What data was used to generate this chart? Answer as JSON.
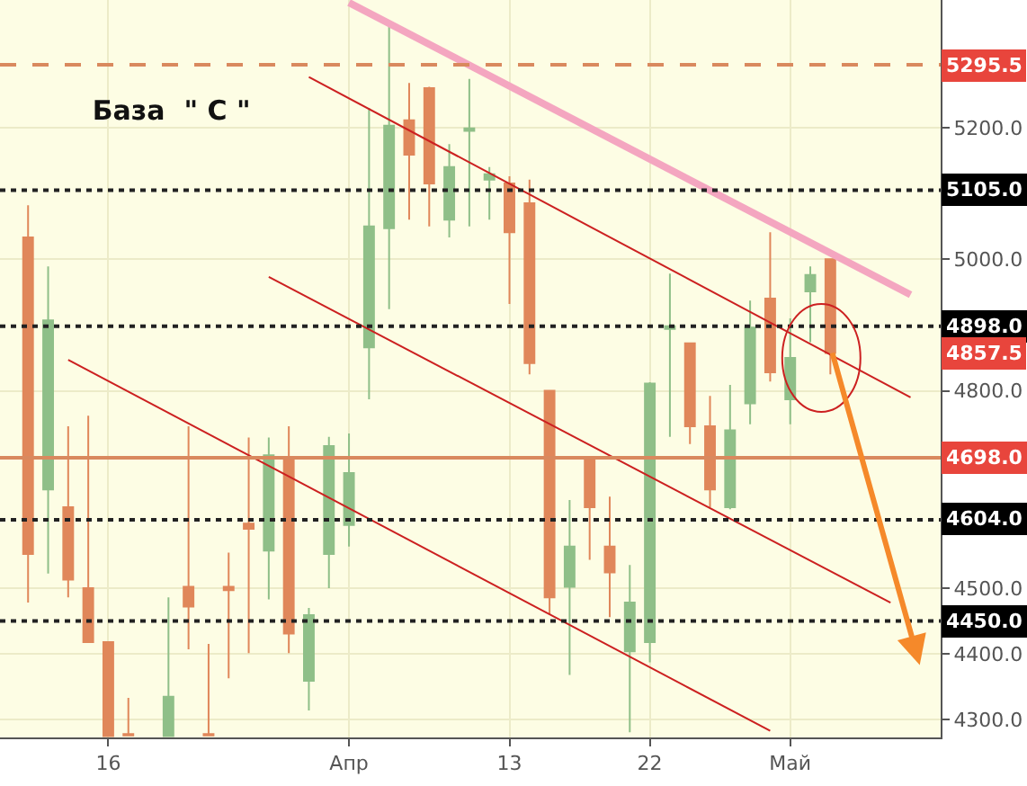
{
  "chart_data": {
    "type": "candlestick",
    "title": "База  \" С \"",
    "categories": [
      null,
      null,
      null,
      null,
      "16",
      null,
      null,
      null,
      null,
      null,
      null,
      null,
      null,
      null,
      null,
      null,
      "Апр",
      null,
      null,
      null,
      null,
      null,
      null,
      null,
      "13",
      null,
      null,
      null,
      null,
      null,
      null,
      "22",
      null,
      null,
      null,
      null,
      null,
      null,
      "Май",
      null,
      null,
      null,
      null,
      null,
      null,
      null
    ],
    "series": [
      {
        "ohlc": [
          [
            5033,
            5082,
            4478,
            4552
          ],
          [
            4650,
            4989,
            4522,
            4907
          ],
          [
            4623,
            4746,
            4486,
            4513
          ],
          [
            4500,
            4762,
            4418,
            4418
          ],
          [
            4418,
            4418,
            4275,
            4275
          ],
          [
            4278,
            4333,
            4275,
            4276
          ],
          null,
          [
            4275,
            4486,
            4275,
            4335
          ],
          [
            4502,
            4746,
            4407,
            4472
          ],
          [
            4278,
            4415,
            4275,
            4276
          ],
          [
            4502,
            4554,
            4363,
            4497
          ],
          [
            4598,
            4729,
            4401,
            4590
          ],
          [
            4557,
            4729,
            4483,
            4702
          ],
          [
            4699,
            4746,
            4401,
            4431
          ],
          [
            4359,
            4470,
            4314,
            4459
          ],
          [
            4552,
            4730,
            4500,
            4716
          ],
          [
            4596,
            4735,
            4563,
            4675
          ],
          [
            4866,
            5230,
            4787,
            5050
          ],
          [
            5047,
            5356,
            4924,
            5203
          ],
          [
            5211,
            5268,
            5060,
            5159
          ],
          [
            5260,
            5262,
            5050,
            5115
          ],
          [
            5060,
            5175,
            5033,
            5140
          ],
          [
            5195,
            5274,
            5050,
            5199
          ],
          [
            5121,
            5140,
            5060,
            5129
          ],
          [
            5115,
            5126,
            4932,
            5041
          ],
          [
            5085,
            5121,
            4825,
            4842
          ],
          [
            4800,
            4800,
            4460,
            4486
          ],
          [
            4502,
            4634,
            4368,
            4563
          ],
          [
            4697,
            4700,
            4543,
            4623
          ],
          [
            4563,
            4639,
            4456,
            4524
          ],
          [
            4404,
            4535,
            4281,
            4478
          ],
          [
            4418,
            4813,
            4387,
            4811
          ],
          [
            4894,
            4978,
            4730,
            4898
          ],
          [
            4872,
            4872,
            4719,
            4746
          ],
          [
            4746,
            4792,
            4623,
            4650
          ],
          [
            4623,
            4809,
            4620,
            4740
          ],
          [
            4781,
            4937,
            4749,
            4896
          ],
          [
            4940,
            5041,
            4814,
            4828
          ],
          [
            4787,
            4910,
            4749,
            4850
          ],
          [
            4951,
            4989,
            4874,
            4976
          ],
          [
            5000,
            5000,
            4825,
            4857.5
          ],
          null,
          null,
          null,
          null,
          null
        ],
        "colors": [
          "#e0875a",
          "#8fbf88",
          "#e0875a",
          "#e0875a",
          "#e0875a",
          "#e0875a",
          null,
          "#8fbf88",
          "#e0875a",
          "#e0875a",
          "#e0875a",
          "#e0875a",
          "#8fbf88",
          "#e0875a",
          "#8fbf88",
          "#8fbf88",
          "#8fbf88",
          "#8fbf88",
          "#8fbf88",
          "#e0875a",
          "#e0875a",
          "#8fbf88",
          "#8fbf88",
          "#8fbf88",
          "#e0875a",
          "#e0875a",
          "#e0875a",
          "#8fbf88",
          "#e0875a",
          "#e0875a",
          "#8fbf88",
          "#8fbf88",
          "#8fbf88",
          "#e0875a",
          "#e0875a",
          "#8fbf88",
          "#8fbf88",
          "#e0875a",
          "#8fbf88",
          "#8fbf88",
          "#e0875a",
          null,
          null,
          null,
          null,
          null
        ]
      },
      {
        "type": "line",
        "color": "#f4a6c0",
        "values": [
          null,
          null,
          null,
          null,
          null,
          null,
          null,
          null,
          null,
          null,
          null,
          null,
          null,
          null,
          null,
          null,
          5390,
          null,
          null,
          null,
          null,
          null,
          null,
          null,
          null,
          null,
          null,
          null,
          null,
          null,
          null,
          null,
          null,
          null,
          null,
          null,
          null,
          null,
          null,
          null,
          null,
          null,
          null,
          null,
          4946,
          null
        ]
      },
      {
        "type": "line",
        "color": "#cc2020",
        "values": [
          null,
          null,
          null,
          null,
          null,
          null,
          null,
          null,
          null,
          null,
          null,
          null,
          null,
          null,
          5277,
          null,
          null,
          null,
          null,
          null,
          null,
          null,
          null,
          null,
          null,
          null,
          null,
          null,
          null,
          null,
          null,
          null,
          null,
          null,
          null,
          null,
          null,
          null,
          null,
          null,
          null,
          null,
          null,
          null,
          4790,
          null
        ]
      },
      {
        "type": "line",
        "color": "#cc2020",
        "values": [
          null,
          null,
          null,
          null,
          null,
          null,
          null,
          null,
          null,
          null,
          null,
          null,
          4973,
          null,
          null,
          null,
          null,
          null,
          null,
          null,
          null,
          null,
          null,
          null,
          null,
          null,
          null,
          null,
          null,
          null,
          null,
          null,
          null,
          null,
          null,
          null,
          null,
          null,
          null,
          null,
          null,
          null,
          null,
          4478,
          null,
          null
        ]
      },
      {
        "type": "line",
        "color": "#cc2020",
        "values": [
          null,
          null,
          4847,
          null,
          null,
          null,
          null,
          null,
          null,
          null,
          null,
          null,
          null,
          null,
          null,
          null,
          null,
          null,
          null,
          null,
          null,
          null,
          null,
          null,
          null,
          null,
          null,
          null,
          null,
          null,
          null,
          null,
          null,
          null,
          null,
          null,
          null,
          4283,
          null,
          null,
          null,
          null,
          null,
          null,
          null,
          null
        ]
      }
    ],
    "ylim": [
      4273,
      5394
    ],
    "yticks": [
      {
        "value": 4300,
        "label": "4300.0"
      },
      {
        "value": 4400,
        "label": "4400.0"
      },
      {
        "value": 4500,
        "label": "4500.0"
      },
      {
        "value": 4800,
        "label": "4800.0"
      },
      {
        "value": 5000,
        "label": "5000.0"
      },
      {
        "value": 5200,
        "label": "5200.0"
      }
    ],
    "grid": true,
    "ref_lines": [
      {
        "axis": "y",
        "value": 5295.5,
        "label": "5295.5",
        "color": "#d9895e",
        "line_style": "dashed"
      },
      {
        "axis": "y",
        "value": 5105,
        "label": "5105.0",
        "color": "#222222",
        "line_style": "dotted"
      },
      {
        "axis": "y",
        "value": 4898,
        "label": "4898.0",
        "color": "#222222",
        "line_style": "dotted"
      },
      {
        "axis": "y",
        "value": 4698,
        "label": "4698.0",
        "color": "#d9895e",
        "line_style": "solid"
      },
      {
        "axis": "y",
        "value": 4604,
        "label": "4604.0",
        "color": "#222222",
        "line_style": "dotted"
      },
      {
        "axis": "y",
        "value": 4450,
        "label": "4450.0",
        "color": "#222222",
        "line_style": "dotted"
      }
    ],
    "annotations": [
      "4857.5"
    ]
  }
}
